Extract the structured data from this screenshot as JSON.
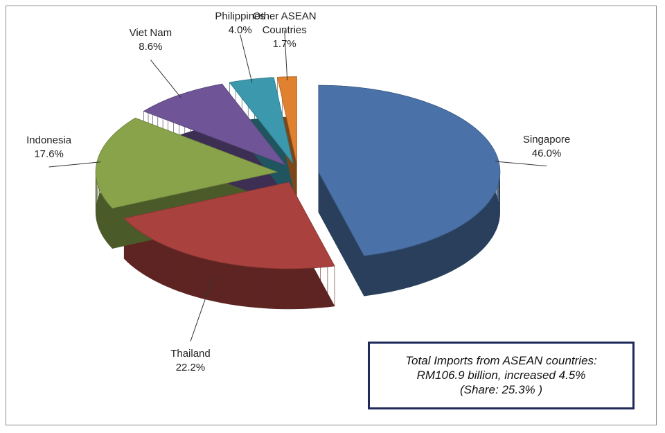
{
  "chart_data": {
    "type": "pie",
    "categories": [
      "Singapore",
      "Thailand",
      "Indonesia",
      "Viet Nam",
      "Philippines",
      "Other ASEAN Countries"
    ],
    "values": [
      46.0,
      22.2,
      17.6,
      8.6,
      4.0,
      1.7
    ],
    "value_labels": [
      "46.0%",
      "22.2%",
      "17.6%",
      "8.6%",
      "4.0%",
      "1.7%"
    ],
    "colors": [
      "#4a72a8",
      "#a9413e",
      "#88a34a",
      "#6f5597",
      "#3b98ad",
      "#e0812f"
    ],
    "annotation": [
      "Total Imports from ASEAN countries:",
      "RM106.9 billion, increased 4.5%",
      "(Share: 25.3% )"
    ]
  }
}
